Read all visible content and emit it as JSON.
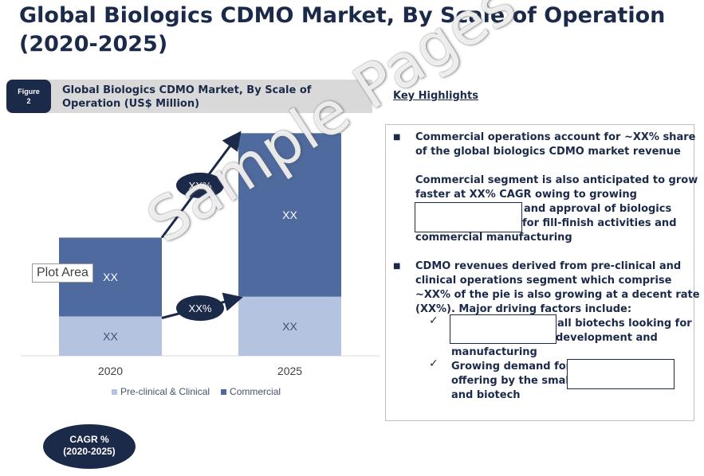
{
  "page_title": "Global Biologics CDMO Market, By Scale of Operation (2020-2025)",
  "figure": {
    "badge_line1": "Figure",
    "badge_line2": "2",
    "title": "Global Biologics CDMO Market, By Scale of Operation (US$ Million)"
  },
  "chart_data": {
    "type": "bar",
    "stacked": true,
    "categories": [
      "2020",
      "2025"
    ],
    "series": [
      {
        "name": "Pre-clinical & Clinical",
        "values": [
          2,
          3
        ],
        "labels": [
          "XX",
          "XX"
        ],
        "color": "#b4c3e0"
      },
      {
        "name": "Commercial",
        "values": [
          4,
          8.3
        ],
        "labels": [
          "XX",
          "XX"
        ],
        "color": "#4e6a9e"
      }
    ],
    "ylim": [
      0,
      12
    ],
    "growth_labels": [
      "XX%",
      "XX%"
    ],
    "legend_position": "bottom",
    "grid": false
  },
  "plot_area_tag": "Plot Area",
  "cagr_badge": {
    "line1": "CAGR %",
    "line2": "(2020-2025)"
  },
  "key_highlights": {
    "title": "Key Highlights",
    "bullet1": [
      "Commercial operations account for ~XX% share",
      "of the global biologics CDMO market revenue"
    ],
    "bullet2": [
      "Commercial segment is also anticipated to grow",
      "faster at XX% CAGR owing to growing",
      "and approval of biologics",
      "for fill-finish activities and",
      "commercial manufacturing"
    ],
    "bullet3": [
      "CDMO revenues derived from pre-clinical and",
      "clinical operations segment which comprise",
      "~XX% of the pie is also growing at a decent rate",
      "(XX%). Major driving factors include:"
    ],
    "sub1": [
      "all biotechs looking for",
      "development and",
      "manufacturing"
    ],
    "sub2": [
      "Growing demand for",
      "offering by the small",
      "and biotech"
    ]
  },
  "watermark": "Sample Pages",
  "colors": {
    "navy": "#1c2a4a",
    "commercial": "#4e6a9e",
    "preclinical": "#b4c3e0"
  }
}
